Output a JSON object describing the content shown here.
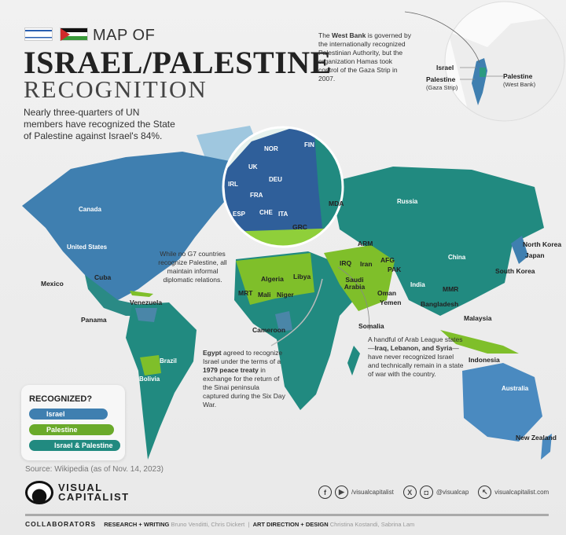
{
  "title": {
    "pre": "MAP OF",
    "main": "ISRAEL/PALESTINE",
    "sub": "RECOGNITION"
  },
  "description": "Nearly three-quarters of UN members have recognized the State of Palestine against Israel's 84%.",
  "inset": {
    "note_pre": "The ",
    "note_bold": "West Bank",
    "note_post": " is governed by the internationally recognized Palestinian Authority, but the organization Hamas took control of the Gaza Strip in 2007.",
    "israel": "Israel",
    "palestine_gaza": "Palestine",
    "gaza_sub": "(Gaza Strip)",
    "palestine_wb": "Palestine",
    "wb_sub": "(West Bank)"
  },
  "colors": {
    "israel": "#3f7fb0",
    "palestine": "#7fbf2a",
    "both": "#218a80",
    "background": "#ececec"
  },
  "labels": {
    "canada": "Canada",
    "us": "United States",
    "mexico": "Mexico",
    "cuba": "Cuba",
    "panama": "Panama",
    "venezuela": "Venezuela",
    "brazil": "Brazil",
    "bolivia": "Bolivia",
    "uk": "UK",
    "irl": "IRL",
    "nor": "NOR",
    "fin": "FIN",
    "deu": "DEU",
    "fra": "FRA",
    "esp": "ESP",
    "che": "CHE",
    "ita": "ITA",
    "grc": "GRC",
    "mda": "MDA",
    "arm": "ARM",
    "russia": "Russia",
    "china": "China",
    "north_korea": "North Korea",
    "japan": "Japan",
    "south_korea": "South Korea",
    "india": "India",
    "bangladesh": "Bangladesh",
    "mmr": "MMR",
    "malaysia": "Malaysia",
    "indonesia": "Indonesia",
    "australia": "Australia",
    "new_zealand": "New Zealand",
    "irq": "IRQ",
    "iran": "Iran",
    "afg": "AFG",
    "pak": "PAK",
    "saudi": "Saudi Arabia",
    "oman": "Oman",
    "yemen": "Yemen",
    "somalia": "Somalia",
    "algeria": "Algeria",
    "libya": "Libya",
    "mrt": "MRT",
    "mali": "Mali",
    "niger": "Niger",
    "cameroon": "Cameroon"
  },
  "notes": {
    "g7": "While no G7 countries recognize Palestine, all maintain informal diplomatic relations.",
    "egypt_b1": "Egypt",
    "egypt_t1": " agreed to recognize Israel under the terms of a ",
    "egypt_b2": "1979 peace treaty",
    "egypt_t2": " in exchange for the return of the Sinai peninsula captured during the Six Day War.",
    "arab_t1": "A handful of Arab League states—",
    "arab_b": "Iraq, Lebanon, and Syria",
    "arab_t2": "—have never recognized Israel and technically remain in a state of war with the country."
  },
  "legend": {
    "title": "RECOGNIZED?",
    "items": [
      {
        "label": "Israel"
      },
      {
        "label": "Palestine"
      },
      {
        "label": "Israel & Palestine"
      }
    ]
  },
  "source": "Source: Wikipedia (as of Nov. 14, 2023)",
  "footer": {
    "logo_line1": "VISUAL",
    "logo_line2": "CAPITALIST",
    "fb_yt": "/visualcapitalist",
    "x_ig": "@visualcap",
    "web": "visualcapitalist.com",
    "collab": "COLLABORATORS",
    "rw": "RESEARCH + WRITING",
    "rw_names": "Bruno Venditti, Chris Dickert",
    "ad": "ART DIRECTION + DESIGN",
    "ad_names": "Christina Kostandi, Sabrina Lam"
  },
  "icons": {
    "facebook": "facebook-icon",
    "youtube": "youtube-icon",
    "x": "x-icon",
    "instagram": "instagram-icon",
    "web": "cursor-icon"
  }
}
